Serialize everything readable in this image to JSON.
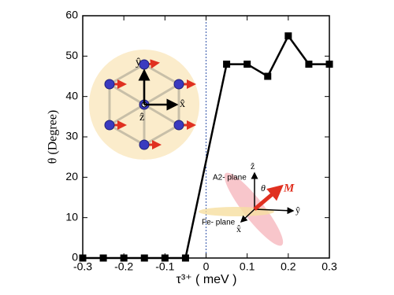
{
  "chart_data": {
    "type": "line",
    "x": [
      -0.3,
      -0.25,
      -0.2,
      -0.15,
      -0.1,
      -0.05,
      0.05,
      0.1,
      0.15,
      0.2,
      0.25,
      0.3
    ],
    "series": [
      {
        "color": "#000000",
        "values": [
          0,
          0,
          0,
          0,
          0,
          0,
          48,
          48,
          45,
          55,
          48,
          48
        ]
      }
    ],
    "xlim": [
      -0.3,
      0.3
    ],
    "ylim": [
      0,
      60
    ],
    "xticks": [
      -0.3,
      -0.2,
      -0.1,
      0,
      0.1,
      0.2,
      0.3
    ],
    "yticks": [
      0,
      10,
      20,
      30,
      40,
      50,
      60
    ],
    "xlabel": "τ³⁺  ( meV )",
    "ylabel": "θ (Degree)",
    "reference_line_x": 0,
    "annotations": {
      "y_hat": "ŷ",
      "x_hat": "x̂",
      "z_hat": "ẑ",
      "z_hat_2": "ẑ",
      "y_hat_2": "ŷ",
      "x_hat_2": "x̂",
      "a2_plane": "A2- plane",
      "fe_plane": "Fe- plane",
      "theta": "θ",
      "m": "M"
    }
  }
}
